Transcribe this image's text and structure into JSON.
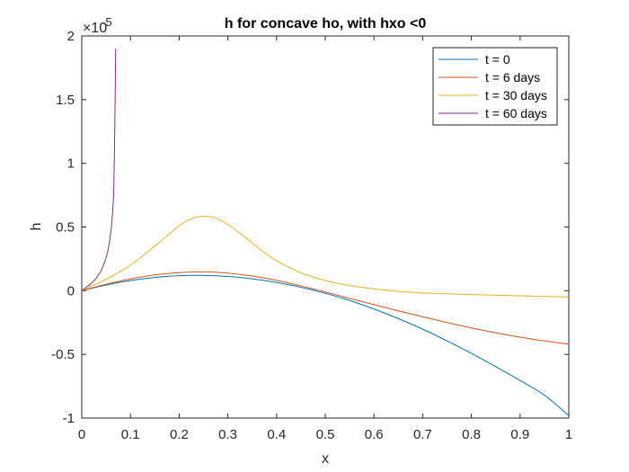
{
  "chart_data": {
    "type": "line",
    "title": "h for concave ho, with hxo <0",
    "xlabel": "x",
    "ylabel": "h",
    "y_scale_exponent": "×10",
    "y_scale_power": "-5",
    "xlim": [
      0,
      1
    ],
    "ylim": [
      -1,
      2
    ],
    "x_ticks": [
      "0",
      "0.1",
      "0.2",
      "0.3",
      "0.4",
      "0.5",
      "0.6",
      "0.7",
      "0.8",
      "0.9",
      "1"
    ],
    "y_ticks": [
      "-1",
      "-0.5",
      "0",
      "0.5",
      "1",
      "1.5",
      "2"
    ],
    "grid": false,
    "legend_position": "top-right",
    "series": [
      {
        "name": "t = 0",
        "color": "#0072BD",
        "x": [
          0,
          0.05,
          0.1,
          0.15,
          0.2,
          0.25,
          0.3,
          0.35,
          0.4,
          0.45,
          0.5,
          0.55,
          0.6,
          0.65,
          0.7,
          0.75,
          0.8,
          0.85,
          0.9,
          0.95,
          1.0
        ],
        "y": [
          0,
          0.045,
          0.08,
          0.104,
          0.118,
          0.12,
          0.112,
          0.093,
          0.064,
          0.027,
          -0.02,
          -0.077,
          -0.144,
          -0.219,
          -0.302,
          -0.394,
          -0.492,
          -0.596,
          -0.705,
          -0.82,
          -0.98
        ]
      },
      {
        "name": "t = 6 days",
        "color": "#D95319",
        "x": [
          0,
          0.05,
          0.1,
          0.15,
          0.2,
          0.25,
          0.3,
          0.35,
          0.4,
          0.45,
          0.5,
          0.55,
          0.6,
          0.65,
          0.7,
          0.75,
          0.8,
          0.85,
          0.9,
          0.95,
          1.0
        ],
        "y": [
          0,
          0.05,
          0.092,
          0.124,
          0.142,
          0.148,
          0.138,
          0.115,
          0.081,
          0.038,
          -0.01,
          -0.06,
          -0.11,
          -0.158,
          -0.205,
          -0.25,
          -0.292,
          -0.33,
          -0.365,
          -0.395,
          -0.42
        ]
      },
      {
        "name": "t = 30 days",
        "color": "#EDB120",
        "x": [
          0,
          0.05,
          0.1,
          0.15,
          0.175,
          0.2,
          0.225,
          0.25,
          0.275,
          0.3,
          0.325,
          0.35,
          0.375,
          0.4,
          0.45,
          0.5,
          0.55,
          0.6,
          0.65,
          0.7,
          0.8,
          0.9,
          1.0
        ],
        "y": [
          0,
          0.09,
          0.2,
          0.35,
          0.43,
          0.51,
          0.565,
          0.585,
          0.57,
          0.52,
          0.45,
          0.375,
          0.3,
          0.235,
          0.14,
          0.08,
          0.04,
          0.015,
          -0.005,
          -0.018,
          -0.03,
          -0.04,
          -0.05
        ]
      },
      {
        "name": "t = 60 days",
        "color": "#7E2F8E",
        "x": [
          0,
          0.01,
          0.02,
          0.03,
          0.04,
          0.05,
          0.055,
          0.06,
          0.063,
          0.065,
          0.066,
          0.067,
          0.068,
          0.069,
          0.0695
        ],
        "y": [
          0,
          0.03,
          0.06,
          0.1,
          0.16,
          0.26,
          0.34,
          0.47,
          0.6,
          0.72,
          0.85,
          1.05,
          1.35,
          1.65,
          1.9
        ]
      }
    ]
  }
}
